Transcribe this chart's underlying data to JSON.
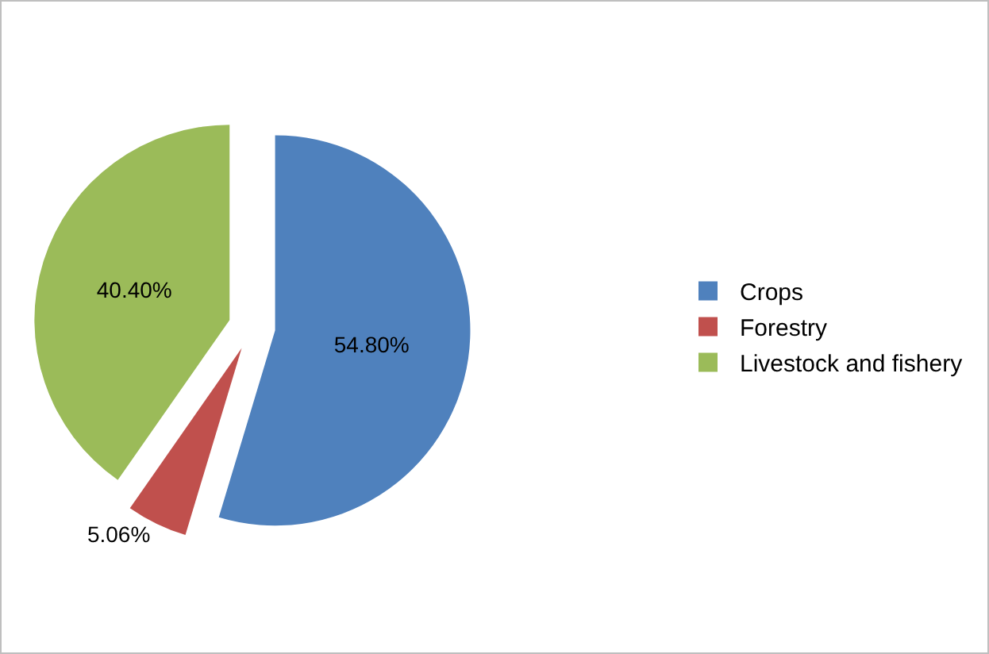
{
  "chart_data": {
    "type": "pie",
    "categories": [
      "Crops",
      "Forestry",
      "Livestock and fishery"
    ],
    "values": [
      54.8,
      5.06,
      40.4
    ],
    "colors": [
      "#4f81bd",
      "#c0504d",
      "#9bbb59"
    ],
    "value_labels": [
      "54.80%",
      "5.06%",
      "40.40%"
    ],
    "legend": "right"
  }
}
